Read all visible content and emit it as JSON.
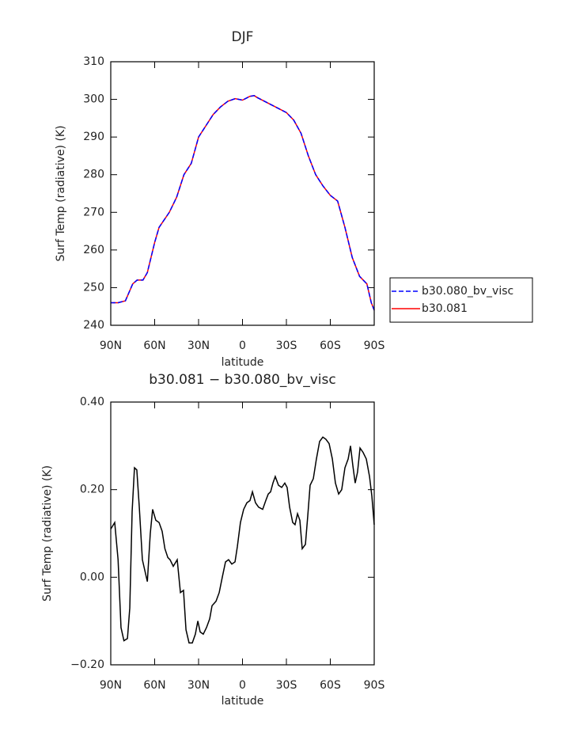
{
  "chart_data": [
    {
      "type": "line",
      "title": "DJF",
      "xlabel": "latitude",
      "ylabel": "Surf Temp (radiative) (K)",
      "x": [
        90,
        85,
        80,
        75,
        72,
        68,
        65,
        60,
        57,
        50,
        45,
        40,
        35,
        30,
        25,
        20,
        15,
        10,
        5,
        0,
        -5,
        -8,
        -10,
        -15,
        -20,
        -25,
        -30,
        -35,
        -40,
        -45,
        -50,
        -55,
        -60,
        -65,
        -70,
        -75,
        -80,
        -85,
        -88,
        -90
      ],
      "series": [
        {
          "name": "b30.080_bv_visc",
          "color": "#0000ff",
          "linestyle": "dashed",
          "values": [
            246,
            246,
            246.5,
            251,
            252,
            252,
            254,
            262,
            266,
            270,
            274,
            280,
            283,
            290,
            293,
            296,
            298,
            299.5,
            300.2,
            299.8,
            300.8,
            301,
            300.5,
            299.5,
            298.5,
            297.5,
            296.5,
            294.5,
            291,
            285,
            280,
            277,
            274.5,
            273,
            266,
            258,
            253,
            251,
            246,
            244
          ]
        },
        {
          "name": "b30.081",
          "color": "#ff0000",
          "linestyle": "solid",
          "values": [
            246,
            246,
            246.5,
            251,
            252,
            252,
            254,
            262,
            266,
            270,
            274,
            280,
            283,
            290,
            293,
            296,
            298,
            299.5,
            300.2,
            299.8,
            300.8,
            301,
            300.5,
            299.5,
            298.5,
            297.5,
            296.5,
            294.5,
            291,
            285,
            280,
            277,
            274.5,
            273,
            266,
            258,
            253,
            251,
            246,
            244
          ]
        }
      ],
      "xlim": [
        90,
        -90
      ],
      "xticks": [
        {
          "value": 90,
          "label": "90N"
        },
        {
          "value": 60,
          "label": "60N"
        },
        {
          "value": 30,
          "label": "30N"
        },
        0,
        {
          "value": -30,
          "label": "30S"
        },
        {
          "value": -60,
          "label": "60S"
        },
        {
          "value": -90,
          "label": "90S"
        }
      ],
      "ylim": [
        240,
        310
      ],
      "yticks": [
        240,
        250,
        260,
        270,
        280,
        290,
        300,
        310
      ],
      "legend": "right"
    },
    {
      "type": "line",
      "title": "b30.081 − b30.080_bv_visc",
      "xlabel": "latitude",
      "ylabel": "Surf Temp (radiative) (K)",
      "x": [
        90,
        87.3,
        85,
        83,
        81,
        78.6,
        77,
        75.4,
        73.8,
        72.2,
        70.5,
        68.4,
        65,
        63,
        61.4,
        59.2,
        57,
        54.9,
        53,
        51,
        49.5,
        47.3,
        44.6,
        42.4,
        40.3,
        38.6,
        36.5,
        34.3,
        32.2,
        30.5,
        28.9,
        26.8,
        24.6,
        22.4,
        20.8,
        18.1,
        15.9,
        13.8,
        11.6,
        9.5,
        7.3,
        5.1,
        3.5,
        1.4,
        -0.8,
        -3,
        -5.1,
        -6.8,
        -8.9,
        -11,
        -13.8,
        -15.9,
        -17.6,
        -19.2,
        -20.8,
        -22.4,
        -24.6,
        -26.8,
        -28.9,
        -30.5,
        -32.2,
        -34.3,
        -35.9,
        -37.6,
        -39.2,
        -40.8,
        -43,
        -44.6,
        -46.2,
        -48.4,
        -50.5,
        -52.7,
        -54.9,
        -57,
        -59.2,
        -61.4,
        -63.5,
        -65.7,
        -67.8,
        -70,
        -72.2,
        -73.8,
        -75.4,
        -77,
        -78.6,
        -80.3,
        -82.4,
        -84.6,
        -86.8,
        -88.4,
        -90
      ],
      "color": "#000000",
      "values": [
        0.11,
        0.125,
        0.04,
        -0.115,
        -0.145,
        -0.14,
        -0.07,
        0.15,
        0.25,
        0.245,
        0.16,
        0.04,
        -0.01,
        0.1,
        0.155,
        0.13,
        0.125,
        0.105,
        0.065,
        0.045,
        0.04,
        0.025,
        0.04,
        -0.035,
        -0.03,
        -0.12,
        -0.15,
        -0.15,
        -0.13,
        -0.1,
        -0.125,
        -0.13,
        -0.115,
        -0.095,
        -0.065,
        -0.055,
        -0.035,
        0,
        0.035,
        0.04,
        0.03,
        0.035,
        0.07,
        0.125,
        0.155,
        0.17,
        0.175,
        0.195,
        0.17,
        0.16,
        0.155,
        0.175,
        0.19,
        0.195,
        0.215,
        0.23,
        0.21,
        0.205,
        0.215,
        0.205,
        0.16,
        0.125,
        0.12,
        0.145,
        0.13,
        0.065,
        0.075,
        0.14,
        0.21,
        0.225,
        0.27,
        0.31,
        0.32,
        0.315,
        0.305,
        0.27,
        0.215,
        0.19,
        0.2,
        0.25,
        0.27,
        0.3,
        0.255,
        0.215,
        0.24,
        0.295,
        0.285,
        0.27,
        0.23,
        0.185,
        0.12
      ],
      "xlim": [
        90,
        -90
      ],
      "xticks": [
        {
          "value": 90,
          "label": "90N"
        },
        {
          "value": 60,
          "label": "60N"
        },
        {
          "value": 30,
          "label": "30N"
        },
        0,
        {
          "value": -30,
          "label": "30S"
        },
        {
          "value": -60,
          "label": "60S"
        },
        {
          "value": -90,
          "label": "90S"
        }
      ],
      "ylim": [
        -0.2,
        0.4
      ],
      "yticks": [
        {
          "value": -0.2,
          "label": "−0.20"
        },
        {
          "value": 0,
          "label": "0.00"
        },
        {
          "value": 0.2,
          "label": "0.20"
        },
        {
          "value": 0.4,
          "label": "0.40"
        }
      ]
    }
  ]
}
